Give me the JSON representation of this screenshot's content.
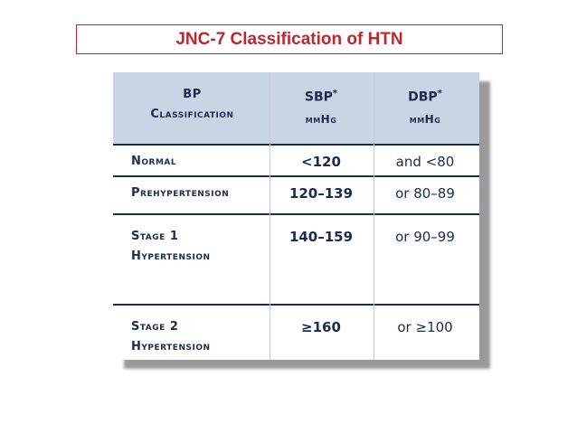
{
  "title": "JNC-7 Classification of HTN",
  "table": {
    "header": [
      {
        "lines": [
          "BP",
          "Classification"
        ]
      },
      {
        "label": "SBP",
        "sup": "*",
        "unit": "mmHg"
      },
      {
        "label": "DBP",
        "sup": "*",
        "unit": "mmHg"
      }
    ],
    "rows": [
      [
        [
          "Normal"
        ],
        "<120",
        "and <80"
      ],
      [
        [
          "Prehypertension"
        ],
        "120–139",
        "or 80–89"
      ],
      [
        [
          "Stage 1",
          "Hypertension"
        ],
        "140–159",
        "or 90–99"
      ],
      [
        [
          "Stage 2",
          "Hypertension"
        ],
        "≥160",
        "or ≥100"
      ]
    ]
  }
}
